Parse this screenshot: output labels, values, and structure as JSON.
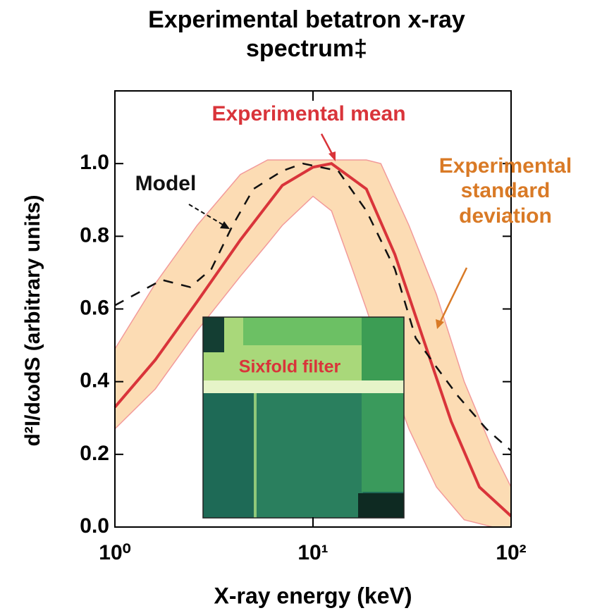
{
  "chart_data": {
    "type": "line",
    "title": "Experimental betatron x-ray spectrum‡",
    "xlabel": "X-ray energy (keV)",
    "ylabel": "d²I/dωdS (arbitrary units)",
    "xscale": "log",
    "xlim": [
      1,
      100
    ],
    "ylim": [
      0,
      1.2
    ],
    "xticks": [
      {
        "value": 1,
        "label": "10⁰"
      },
      {
        "value": 10,
        "label": "10¹"
      },
      {
        "value": 100,
        "label": "10²"
      }
    ],
    "yticks": [
      {
        "value": 0,
        "label": "0.0"
      },
      0.2,
      0.4,
      0.6,
      0.8,
      {
        "value": 1,
        "label": "1.0"
      }
    ],
    "series": [
      {
        "name": "Experimental mean",
        "color": "#d9343a",
        "x": [
          1,
          1.6,
          2.6,
          4.3,
          7,
          10,
          12.4,
          18.6,
          25.9,
          35.9,
          49.9,
          69.2,
          100
        ],
        "values": [
          0.33,
          0.46,
          0.62,
          0.79,
          0.94,
          0.99,
          1.0,
          0.93,
          0.75,
          0.52,
          0.29,
          0.11,
          0.03
        ]
      },
      {
        "name": "Model",
        "color": "#111111",
        "x": [
          1,
          1.73,
          2.4,
          3.07,
          3.93,
          5,
          7,
          8.9,
          13.4,
          18.6,
          25.9,
          33,
          42,
          54,
          75,
          100
        ],
        "values": [
          0.61,
          0.68,
          0.66,
          0.71,
          0.83,
          0.93,
          0.98,
          1.0,
          0.98,
          0.87,
          0.71,
          0.52,
          0.44,
          0.36,
          0.27,
          0.21
        ]
      }
    ],
    "band": {
      "name": "Experimental standard deviation",
      "color": "#fcdcb4",
      "edge_color": "#f29a9a",
      "label_color": "#d97a26",
      "x": [
        1,
        1.6,
        2.6,
        4.3,
        5.9,
        7,
        10,
        12.4,
        15.8,
        18.6,
        22,
        30.5,
        42,
        58,
        81,
        100
      ],
      "upper": [
        0.49,
        0.67,
        0.83,
        0.97,
        1.01,
        1.01,
        1.01,
        1.01,
        1.01,
        1.01,
        1.0,
        0.83,
        0.64,
        0.4,
        0.21,
        0.11
      ],
      "lower": [
        0.27,
        0.38,
        0.54,
        0.69,
        0.78,
        0.83,
        0.91,
        0.87,
        0.71,
        0.6,
        0.48,
        0.27,
        0.11,
        0.02,
        0,
        0
      ]
    },
    "inset_label": "Sixfold filter"
  }
}
